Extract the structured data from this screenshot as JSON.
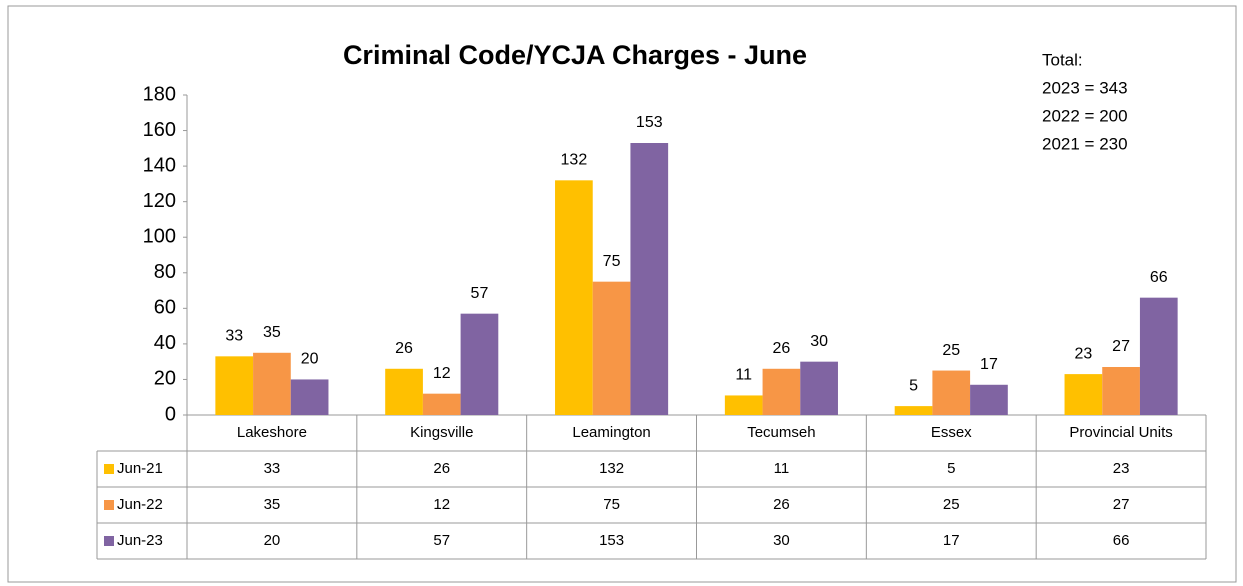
{
  "chart_data": {
    "type": "bar",
    "title": "Criminal Code/YCJA Charges - June",
    "annotations": [
      "Total:",
      "2023 = 343",
      "2022 = 200",
      "2021 = 230"
    ],
    "categories": [
      "Lakeshore",
      "Kingsville",
      "Leamington",
      "Tecumseh",
      "Essex",
      "Provincial Units"
    ],
    "series": [
      {
        "name": "Jun-21",
        "color": "#ffc000",
        "values": [
          33,
          26,
          132,
          11,
          5,
          23
        ]
      },
      {
        "name": "Jun-22",
        "color": "#f79646",
        "values": [
          35,
          12,
          75,
          26,
          25,
          27
        ]
      },
      {
        "name": "Jun-23",
        "color": "#8064a2",
        "values": [
          20,
          57,
          153,
          30,
          17,
          66
        ]
      }
    ],
    "ylim": [
      0,
      180
    ],
    "yticks": [
      0,
      20,
      40,
      60,
      80,
      100,
      120,
      140,
      160,
      180
    ],
    "grid": false
  }
}
